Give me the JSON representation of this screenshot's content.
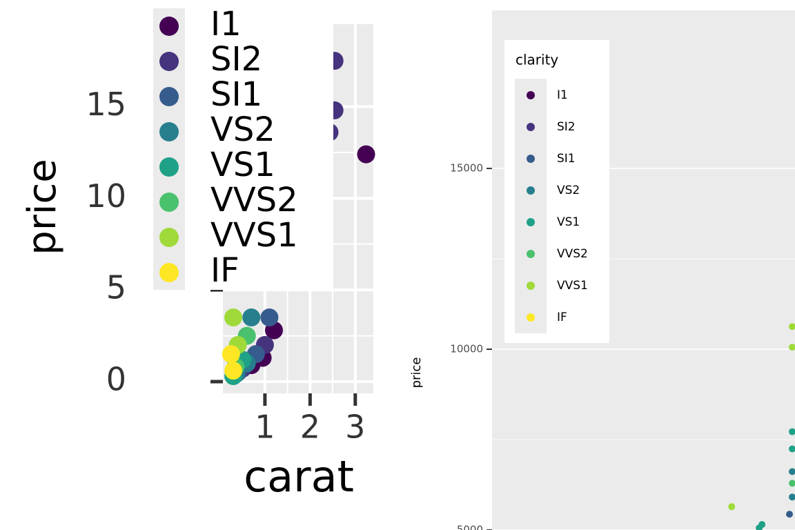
{
  "chart_data": [
    {
      "type": "scatter",
      "x_label": "carat",
      "y_label": "price",
      "xlim": [
        0.07,
        3.4
      ],
      "ylim": [
        -0.64,
        19.5
      ],
      "xticks": [
        1,
        2,
        3
      ],
      "yticks": [
        0,
        5,
        10,
        15
      ],
      "grid": true,
      "legend_position": "top-left",
      "series": [
        {
          "name": "I1",
          "color": "#440154",
          "x": [
            3.24,
            1.2,
            0.95,
            0.7
          ],
          "values": [
            12.4,
            2.8,
            1.3,
            0.9
          ]
        },
        {
          "name": "SI2",
          "color": "#46337E",
          "x": [
            2.54,
            2.54,
            2.43,
            1.0,
            0.5
          ],
          "values": [
            17.5,
            14.8,
            13.6,
            2.0,
            0.7
          ]
        },
        {
          "name": "SI1",
          "color": "#365C8D",
          "x": [
            0.8,
            0.4,
            1.1
          ],
          "values": [
            1.5,
            0.5,
            3.5
          ]
        },
        {
          "name": "VS2",
          "color": "#277F8E",
          "x": [
            0.6,
            0.35,
            0.7
          ],
          "values": [
            1.0,
            0.4,
            3.5
          ]
        },
        {
          "name": "VS1",
          "color": "#1FA187",
          "x": [
            0.5,
            0.3
          ],
          "values": [
            1.2,
            0.3
          ]
        },
        {
          "name": "VVS2",
          "color": "#4AC16D",
          "x": [
            0.35,
            0.6
          ],
          "values": [
            0.8,
            2.5
          ]
        },
        {
          "name": "VVS1",
          "color": "#9FDA3A",
          "x": [
            0.4,
            0.3
          ],
          "values": [
            2.0,
            3.5
          ]
        },
        {
          "name": "IF",
          "color": "#FDE725",
          "x": [
            0.3,
            0.25
          ],
          "values": [
            0.6,
            1.5
          ]
        }
      ]
    },
    {
      "type": "scatter",
      "y_label": "price",
      "legend_title": "clarity",
      "xlim": [
        0,
        1.1
      ],
      "ylim": [
        5000,
        19373
      ],
      "yticks": [
        5000,
        10000,
        15000
      ],
      "grid": true,
      "legend_position": "top-left",
      "series": [
        {
          "name": "I1",
          "color": "#440154",
          "x": [],
          "values": []
        },
        {
          "name": "SI2",
          "color": "#46337E",
          "x": [],
          "values": []
        },
        {
          "name": "SI1",
          "color": "#365C8D",
          "x": [
            1.08
          ],
          "values": [
            5437
          ]
        },
        {
          "name": "VS2",
          "color": "#277F8E",
          "x": [
            1.09,
            1.09
          ],
          "values": [
            6616,
            5912
          ]
        },
        {
          "name": "VS1",
          "color": "#1FA187",
          "x": [
            0.98,
            0.97,
            1.09,
            1.09
          ],
          "values": [
            5152,
            5057,
            7719,
            7243
          ]
        },
        {
          "name": "VVS2",
          "color": "#4AC16D",
          "x": [
            1.09
          ],
          "values": [
            6293
          ]
        },
        {
          "name": "VVS1",
          "color": "#9FDA3A",
          "x": [
            0.87,
            1.09,
            1.09
          ],
          "values": [
            5646,
            10057,
            10627
          ]
        },
        {
          "name": "IF",
          "color": "#FDE725",
          "x": [],
          "values": []
        }
      ]
    }
  ]
}
